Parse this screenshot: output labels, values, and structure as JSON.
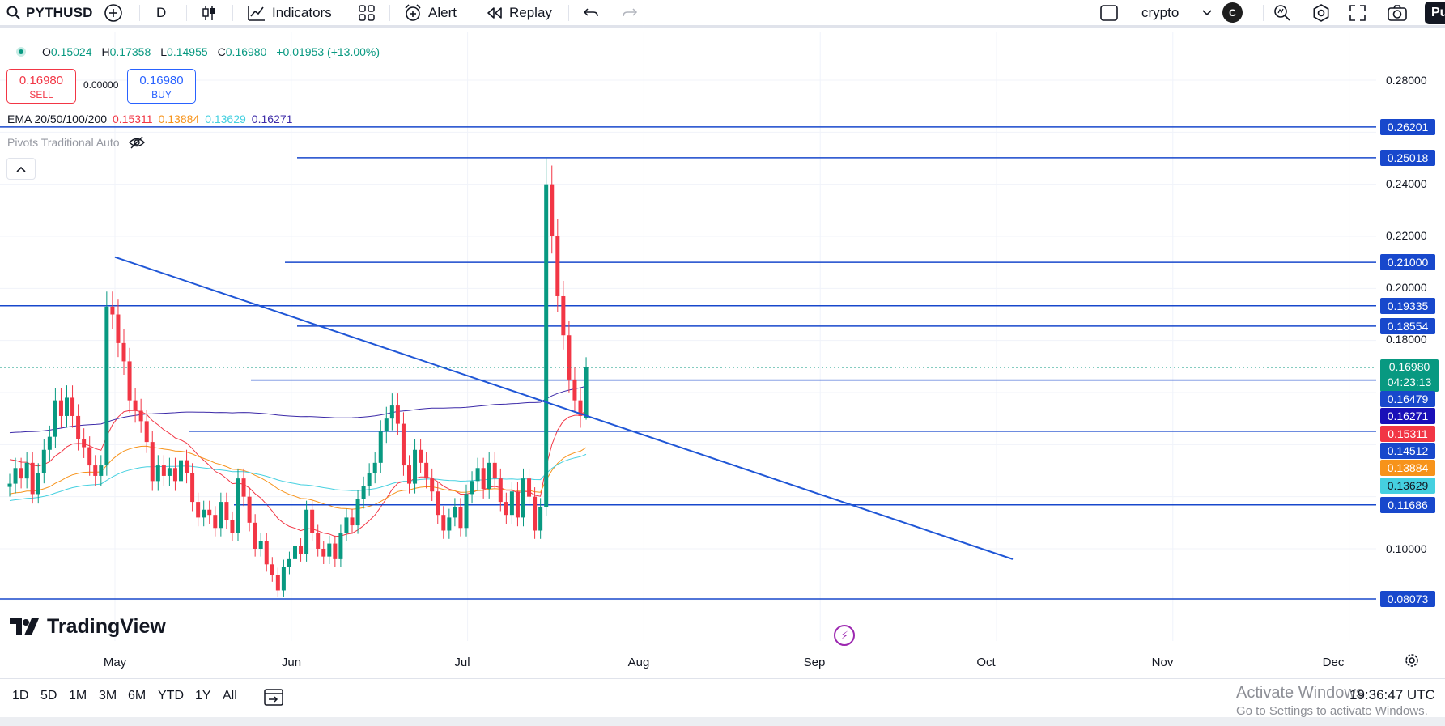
{
  "toolbar": {
    "symbol": "PYTHUSD",
    "interval": "D",
    "indicators_label": "Indicators",
    "alert_label": "Alert",
    "replay_label": "Replay",
    "watchlist_name": "crypto",
    "watchlist_badge": "C",
    "publish_label": "Pu"
  },
  "legend": {
    "ohlc": {
      "o_key": "O",
      "o": "0.15024",
      "h_key": "H",
      "h": "0.17358",
      "l_key": "L",
      "l": "0.14955",
      "c_key": "C",
      "c": "0.16980",
      "change": "+0.01953 (+13.00%)"
    },
    "sell_price": "0.16980",
    "sell_label": "SELL",
    "spread": "0.00000",
    "buy_price": "0.16980",
    "buy_label": "BUY",
    "ema_label": "EMA 20/50/100/200",
    "ema_values": [
      "0.15311",
      "0.13884",
      "0.13629",
      "0.16271"
    ],
    "pivots_label": "Pivots Traditional Auto"
  },
  "colors": {
    "up": "#089981",
    "down": "#f23645",
    "pivot_line": "#1848cc",
    "ema20": "#f23645",
    "ema50": "#f7931a",
    "ema100": "#45d0e0",
    "ema200": "#3c2aa8"
  },
  "price_axis": {
    "ticks": [
      "0.28000",
      "0.24000",
      "0.22000",
      "0.20000",
      "0.18000",
      "0.10000"
    ],
    "pivot_tags": [
      "0.26201",
      "0.25018",
      "0.21000",
      "0.19335",
      "0.18554",
      "0.16479",
      "0.14512",
      "0.11686",
      "0.08073"
    ],
    "current_price": "0.16980",
    "countdown": "04:23:13",
    "ema200_tag": "0.16271",
    "ema20_tag": "0.15311",
    "ema50_tag": "0.13884",
    "ema100_tag": "0.13629"
  },
  "chart_data": {
    "type": "candlestick",
    "symbol": "PYTHUSD",
    "interval": "D",
    "pivot_levels": [
      0.26201,
      0.25018,
      0.21,
      0.19335,
      0.18554,
      0.16479,
      0.14512,
      0.11686,
      0.08073
    ],
    "ema": {
      "20": 0.15311,
      "50": 0.13884,
      "100": 0.13629,
      "200": 0.16271
    },
    "last": {
      "open": 0.15024,
      "high": 0.17358,
      "low": 0.14955,
      "close": 0.1698
    },
    "candles_approx_close": [
      0.125,
      0.131,
      0.127,
      0.133,
      0.121,
      0.129,
      0.138,
      0.143,
      0.157,
      0.151,
      0.158,
      0.151,
      0.142,
      0.139,
      0.132,
      0.128,
      0.132,
      0.193,
      0.19,
      0.179,
      0.172,
      0.157,
      0.153,
      0.149,
      0.141,
      0.126,
      0.132,
      0.128,
      0.131,
      0.126,
      0.134,
      0.129,
      0.118,
      0.112,
      0.115,
      0.113,
      0.108,
      0.118,
      0.111,
      0.106,
      0.127,
      0.12,
      0.11,
      0.1,
      0.103,
      0.094,
      0.09,
      0.084,
      0.093,
      0.096,
      0.101,
      0.098,
      0.115,
      0.106,
      0.1,
      0.097,
      0.102,
      0.096,
      0.106,
      0.112,
      0.109,
      0.119,
      0.124,
      0.129,
      0.133,
      0.145,
      0.15,
      0.155,
      0.148,
      0.132,
      0.125,
      0.138,
      0.133,
      0.127,
      0.122,
      0.113,
      0.107,
      0.112,
      0.116,
      0.108,
      0.121,
      0.126,
      0.131,
      0.123,
      0.133,
      0.127,
      0.118,
      0.113,
      0.122,
      0.112,
      0.127,
      0.12,
      0.107,
      0.116,
      0.24,
      0.22,
      0.197,
      0.182,
      0.165,
      0.157,
      0.151,
      0.1698
    ],
    "trendline": {
      "start": {
        "month": "May",
        "price": 0.212
      },
      "end": {
        "month": "Oct",
        "price": 0.096
      }
    }
  },
  "time_axis": {
    "labels": [
      "May",
      "Jun",
      "Jul",
      "Aug",
      "Sep",
      "Oct",
      "Nov",
      "Dec"
    ]
  },
  "branding": {
    "watermark": "TradingView"
  },
  "bottom_bar": {
    "ranges": [
      "1D",
      "5D",
      "1M",
      "3M",
      "6M",
      "YTD",
      "1Y",
      "All"
    ],
    "clock": "19:36:47 UTC",
    "windows_title": "Activate Windows",
    "windows_subtitle": "Go to Settings to activate Windows."
  }
}
